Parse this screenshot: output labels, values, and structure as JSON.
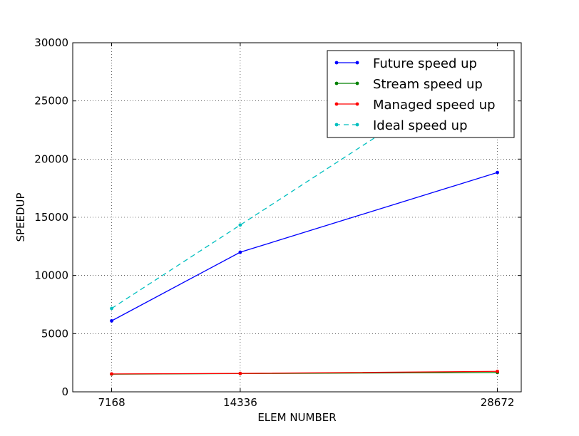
{
  "chart_data": {
    "type": "line",
    "title": "",
    "xlabel": "ELEM NUMBER",
    "ylabel": "SPEEDUP",
    "x": [
      7168,
      14336,
      28672
    ],
    "x_tick_labels": [
      "7168",
      "14336",
      "28672"
    ],
    "xlim": [
      5000,
      30000
    ],
    "ylim": [
      0,
      30000
    ],
    "y_ticks": [
      0,
      5000,
      10000,
      15000,
      20000,
      25000,
      30000
    ],
    "y_tick_labels": [
      "0",
      "5000",
      "10000",
      "15000",
      "20000",
      "25000",
      "30000"
    ],
    "grid": true,
    "legend_position": "top-right",
    "series": [
      {
        "name": "Future speed up",
        "color": "#0000ff",
        "dashed": false,
        "values": [
          6100,
          12000,
          18850
        ]
      },
      {
        "name": "Stream speed up",
        "color": "#008000",
        "dashed": false,
        "values": [
          1520,
          1570,
          1660
        ]
      },
      {
        "name": "Managed speed up",
        "color": "#ff0000",
        "dashed": false,
        "values": [
          1540,
          1580,
          1760
        ]
      },
      {
        "name": "Ideal speed up",
        "color": "#00bfbf",
        "dashed": true,
        "values": [
          7168,
          14336,
          28672
        ]
      }
    ]
  }
}
